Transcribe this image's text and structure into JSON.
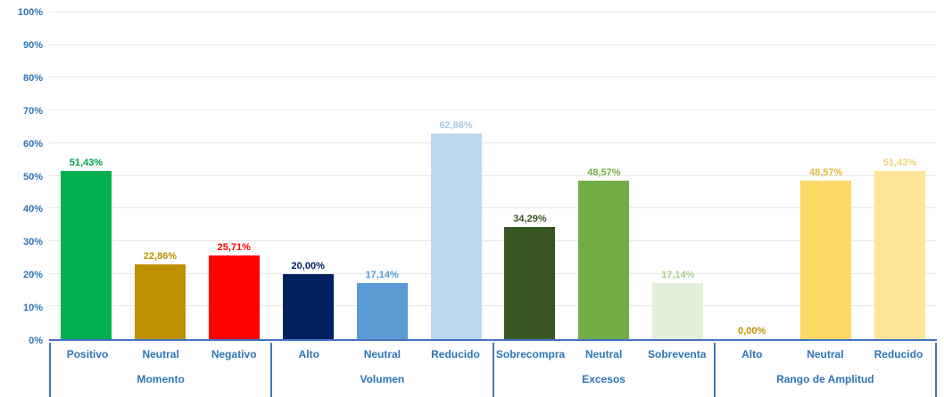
{
  "chart_data": {
    "type": "bar",
    "title": "",
    "xlabel": "",
    "ylabel": "",
    "ylim": [
      0,
      100
    ],
    "grid": true,
    "legend": false,
    "yticks": [
      {
        "label": "0%",
        "value": 0
      },
      {
        "label": "10%",
        "value": 10
      },
      {
        "label": "20%",
        "value": 20
      },
      {
        "label": "30%",
        "value": 30
      },
      {
        "label": "40%",
        "value": 40
      },
      {
        "label": "50%",
        "value": 50
      },
      {
        "label": "60%",
        "value": 60
      },
      {
        "label": "70%",
        "value": 70
      },
      {
        "label": "80%",
        "value": 80
      },
      {
        "label": "90%",
        "value": 90
      },
      {
        "label": "100%",
        "value": 100
      }
    ],
    "groups": [
      {
        "name": "Momento",
        "bars": [
          {
            "category": "Positivo",
            "value": 51.43,
            "display": "51,43%",
            "bar_color": "#00B050",
            "label_color": "#00A14B"
          },
          {
            "category": "Neutral",
            "value": 22.86,
            "display": "22,86%",
            "bar_color": "#BF9000",
            "label_color": "#BF9000"
          },
          {
            "category": "Negativo",
            "value": 25.71,
            "display": "25,71%",
            "bar_color": "#FF0000",
            "label_color": "#FF0000"
          }
        ]
      },
      {
        "name": "Volumen",
        "bars": [
          {
            "category": "Alto",
            "value": 20.0,
            "display": "20,00%",
            "bar_color": "#002060",
            "label_color": "#002060"
          },
          {
            "category": "Neutral",
            "value": 17.14,
            "display": "17,14%",
            "bar_color": "#5B9BD5",
            "label_color": "#5B9BD5"
          },
          {
            "category": "Reducido",
            "value": 62.86,
            "display": "62,86%",
            "bar_color": "#BDD7EE",
            "label_color": "#A6C9E8"
          }
        ]
      },
      {
        "name": "Excesos",
        "bars": [
          {
            "category": "Sobrecompra",
            "value": 34.29,
            "display": "34,29%",
            "bar_color": "#375623",
            "label_color": "#375623"
          },
          {
            "category": "Neutral",
            "value": 48.57,
            "display": "48,57%",
            "bar_color": "#70AD47",
            "label_color": "#70AD47"
          },
          {
            "category": "Sobreventa",
            "value": 17.14,
            "display": "17,14%",
            "bar_color": "#E2EFDA",
            "label_color": "#A9D18E"
          }
        ]
      },
      {
        "name": "Rango de Amplitud",
        "bars": [
          {
            "category": "Alto",
            "value": 0.0,
            "display": "0,00%",
            "bar_color": "#BF9000",
            "label_color": "#BF9000"
          },
          {
            "category": "Neutral",
            "value": 48.57,
            "display": "48,57%",
            "bar_color": "#FFD966",
            "label_color": "#E2B93B"
          },
          {
            "category": "Reducido",
            "value": 51.43,
            "display": "51,43%",
            "bar_color": "#FFE699",
            "label_color": "#EFD37A"
          }
        ]
      }
    ],
    "colors": {
      "axis_line": "#4472C4",
      "axis_text": "#2E75B6",
      "gridline": "#E7E7E7",
      "background": "#FFFFFF"
    }
  }
}
